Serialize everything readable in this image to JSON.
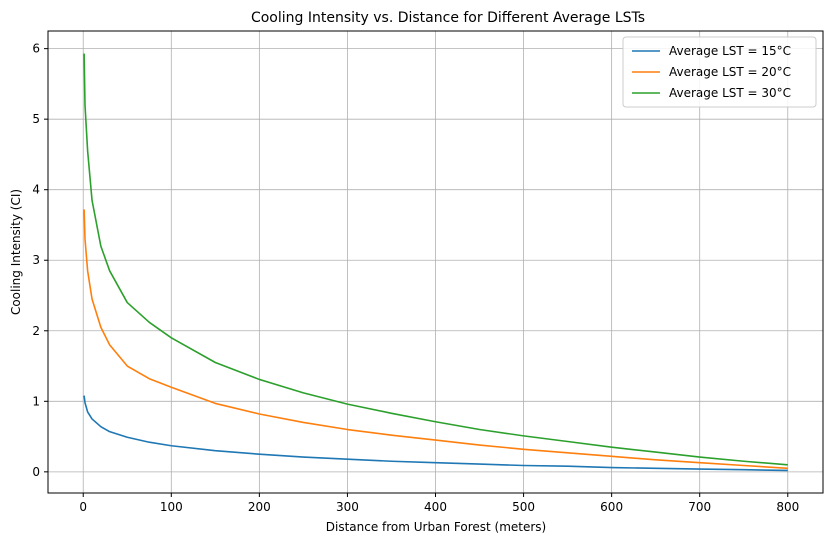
{
  "chart_data": {
    "type": "line",
    "title": "Cooling Intensity vs. Distance for Different Average LSTs",
    "xlabel": "Distance from Urban Forest (meters)",
    "ylabel": "Cooling Intensity (CI)",
    "xlim": [
      -40,
      840
    ],
    "ylim": [
      -0.3,
      6.25
    ],
    "xticks": [
      0,
      100,
      200,
      300,
      400,
      500,
      600,
      700,
      800
    ],
    "yticks": [
      0,
      1,
      2,
      3,
      4,
      5,
      6
    ],
    "grid": true,
    "legend_position": "top-right",
    "x": [
      1,
      2,
      5,
      10,
      20,
      30,
      50,
      75,
      100,
      150,
      200,
      250,
      300,
      350,
      400,
      450,
      500,
      550,
      600,
      650,
      700,
      750,
      800
    ],
    "series": [
      {
        "name": "Average LST = 15°C",
        "color": "#1f77b4",
        "values": [
          1.08,
          0.98,
          0.85,
          0.75,
          0.64,
          0.57,
          0.49,
          0.42,
          0.37,
          0.3,
          0.25,
          0.21,
          0.18,
          0.15,
          0.13,
          0.11,
          0.09,
          0.08,
          0.06,
          0.05,
          0.04,
          0.03,
          0.02
        ]
      },
      {
        "name": "Average LST = 20°C",
        "color": "#ff7f0e",
        "values": [
          3.72,
          3.3,
          2.85,
          2.45,
          2.05,
          1.8,
          1.5,
          1.32,
          1.2,
          0.97,
          0.82,
          0.7,
          0.6,
          0.52,
          0.45,
          0.38,
          0.32,
          0.27,
          0.22,
          0.17,
          0.13,
          0.09,
          0.05
        ]
      },
      {
        "name": "Average LST = 30°C",
        "color": "#2ca02c",
        "values": [
          5.93,
          5.2,
          4.55,
          3.85,
          3.2,
          2.85,
          2.4,
          2.12,
          1.9,
          1.55,
          1.31,
          1.12,
          0.96,
          0.83,
          0.71,
          0.6,
          0.51,
          0.43,
          0.35,
          0.28,
          0.21,
          0.15,
          0.1
        ]
      }
    ]
  }
}
